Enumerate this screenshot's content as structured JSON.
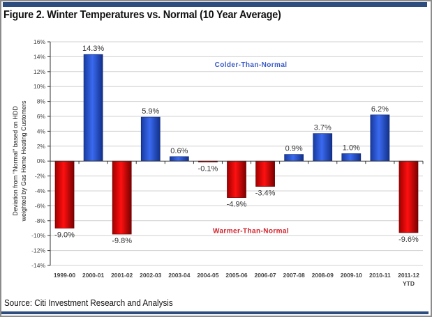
{
  "header": {
    "title": "Figure 2. Winter Temperatures vs. Normal (10 Year Average)"
  },
  "footer": {
    "source": "Source: Citi Investment Research and Analysis"
  },
  "colors": {
    "positive_bar": "#2452d6",
    "negative_bar": "#e00000",
    "frame_accent": "#2e4d7f",
    "annotation_colder": "#3a5bc7",
    "annotation_warmer": "#d4202a"
  },
  "chart_data": {
    "type": "bar",
    "title": "Figure 2. Winter Temperatures vs. Normal (10 Year Average)",
    "xlabel": "",
    "ylabel_lines": [
      "Deviation from \"Normal\" based on HDD",
      "weighted by Gas Home Heating Customers"
    ],
    "categories": [
      "1999-00",
      "2000-01",
      "2001-02",
      "2002-03",
      "2003-04",
      "2004-05",
      "2005-06",
      "2006-07",
      "2007-08",
      "2008-09",
      "2009-10",
      "2010-11",
      "2011-12"
    ],
    "category_sublabels": [
      "",
      "",
      "",
      "",
      "",
      "",
      "",
      "",
      "",
      "",
      "",
      "",
      "YTD"
    ],
    "values": [
      -9.0,
      14.3,
      -9.8,
      5.9,
      0.6,
      -0.1,
      -4.9,
      -3.4,
      0.9,
      3.7,
      1.0,
      6.2,
      -9.6
    ],
    "data_labels": [
      "-9.0%",
      "14.3%",
      "-9.8%",
      "5.9%",
      "0.6%",
      "-0.1%",
      "-4.9%",
      "-3.4%",
      "0.9%",
      "3.7%",
      "1.0%",
      "6.2%",
      "-9.6%"
    ],
    "ylim": [
      -14,
      16
    ],
    "yticks": [
      16,
      14,
      12,
      10,
      8,
      6,
      4,
      2,
      0,
      -2,
      -4,
      -6,
      -8,
      -10,
      -12,
      -14
    ],
    "ytick_labels": [
      "16%",
      "14%",
      "12%",
      "10%",
      "8%",
      "6%",
      "4%",
      "2%",
      "0%",
      "-2%",
      "-4%",
      "-6%",
      "-8%",
      "-10%",
      "-12%",
      "-14%"
    ],
    "grid": true,
    "annotations": [
      {
        "text": "Colder-Than-Normal",
        "x_category": "2005-06",
        "y": 13.0,
        "color": "blue"
      },
      {
        "text": "Warmer-Than-Normal",
        "x_category": "2005-06",
        "y": -9.3,
        "color": "red"
      }
    ],
    "legend": "none"
  }
}
